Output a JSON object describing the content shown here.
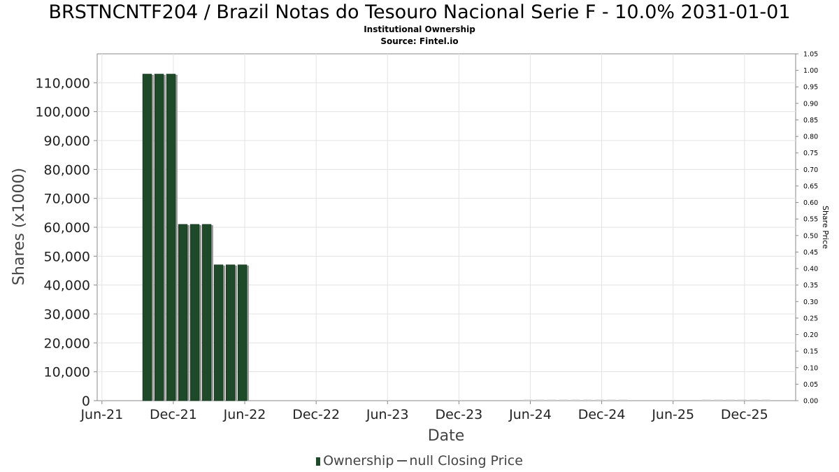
{
  "chart_data": {
    "type": "bar",
    "title": "BRSTNCNTF204 / Brazil Notas do Tesouro Nacional Serie F - 10.0% 2031-01-01",
    "subtitle": "Institutional Ownership",
    "source": "Source: Fintel.io",
    "xlabel": "Date",
    "ylabel": "Shares (x1000)",
    "y2label": "Share Price",
    "ylim": [
      0,
      120000
    ],
    "y2lim": [
      0,
      1.05
    ],
    "yticks": [
      "0",
      "10,000",
      "20,000",
      "30,000",
      "40,000",
      "50,000",
      "60,000",
      "70,000",
      "80,000",
      "90,000",
      "100,000",
      "110,000"
    ],
    "y2ticks": [
      "0.00",
      "0.05",
      "0.10",
      "0.15",
      "0.20",
      "0.25",
      "0.30",
      "0.35",
      "0.40",
      "0.45",
      "0.50",
      "0.55",
      "0.60",
      "0.65",
      "0.70",
      "0.75",
      "0.80",
      "0.85",
      "0.90",
      "0.95",
      "1.00",
      "1.05"
    ],
    "xticks": [
      "Jun-21",
      "Dec-21",
      "Jun-22",
      "Dec-22",
      "Jun-23",
      "Dec-23",
      "Jun-24",
      "Dec-24",
      "Jun-25",
      "Dec-25"
    ],
    "xrange_months": [
      -0.4,
      58.3
    ],
    "bar_width_months": 0.75,
    "grid": true,
    "series": [
      {
        "name": "Ownership",
        "color": "#1e4a2a",
        "points": [
          {
            "month": 3.8,
            "value": 113000
          },
          {
            "month": 4.8,
            "value": 113000
          },
          {
            "month": 5.8,
            "value": 113000
          },
          {
            "month": 6.8,
            "value": 61000
          },
          {
            "month": 7.8,
            "value": 61000
          },
          {
            "month": 8.8,
            "value": 61000
          },
          {
            "month": 9.8,
            "value": 47000
          },
          {
            "month": 10.8,
            "value": 47000
          },
          {
            "month": 11.8,
            "value": 47000
          },
          {
            "month": 35.8,
            "value": 0
          },
          {
            "month": 36.8,
            "value": 0
          },
          {
            "month": 37.8,
            "value": 0
          },
          {
            "month": 38.8,
            "value": 0
          },
          {
            "month": 39.8,
            "value": 0
          },
          {
            "month": 40.8,
            "value": 0
          },
          {
            "month": 41.8,
            "value": 0
          },
          {
            "month": 42.8,
            "value": 0
          },
          {
            "month": 43.8,
            "value": 0
          },
          {
            "month": 50.8,
            "value": 0
          },
          {
            "month": 51.8,
            "value": 0
          },
          {
            "month": 52.8,
            "value": 0
          },
          {
            "month": 53.8,
            "value": 0
          },
          {
            "month": 54.8,
            "value": 0
          },
          {
            "month": 55.8,
            "value": 0
          }
        ]
      },
      {
        "name": "null Closing Price",
        "color": "#555555",
        "points": []
      }
    ],
    "legend": {
      "position": "bottom",
      "ownership_label": "Ownership",
      "price_label": "null Closing Price"
    }
  }
}
